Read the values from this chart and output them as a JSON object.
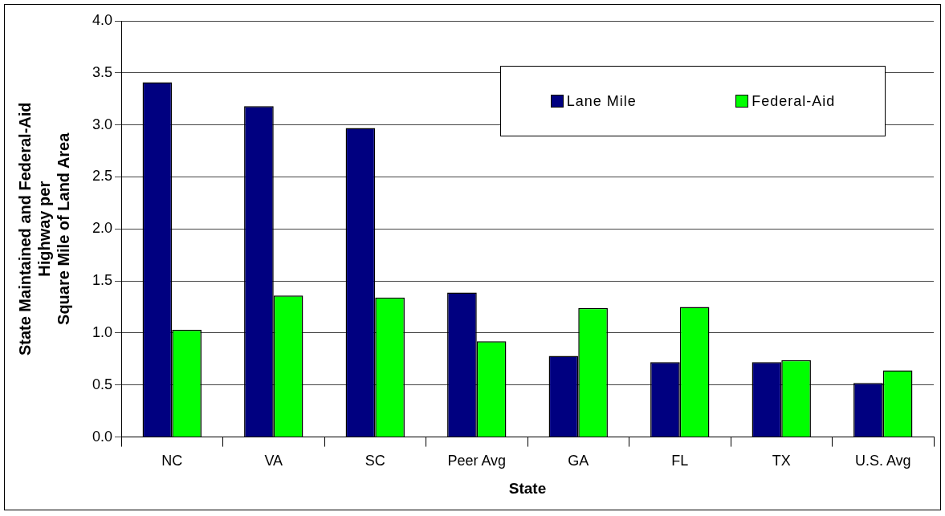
{
  "chart_data": {
    "type": "bar",
    "xlabel": "State",
    "ylabel": "State Maintained and Federal-Aid\nHighway per\nSquare Mile of Land Area",
    "categories": [
      "NC",
      "VA",
      "SC",
      "Peer Avg",
      "GA",
      "FL",
      "TX",
      "U.S. Avg"
    ],
    "series": [
      {
        "name": "Lane Mile",
        "color": "#000080",
        "values": [
          3.41,
          3.18,
          2.97,
          1.39,
          0.78,
          0.72,
          0.72,
          0.52
        ]
      },
      {
        "name": "Federal-Aid",
        "color": "#00ff00",
        "values": [
          1.03,
          1.36,
          1.34,
          0.92,
          1.24,
          1.25,
          0.74,
          0.64
        ]
      }
    ],
    "ylim": [
      0,
      4
    ],
    "yticks": [
      {
        "value": 0,
        "label": "0.0"
      },
      {
        "value": 0.5,
        "label": "0.5"
      },
      {
        "value": 1,
        "label": "1.0"
      },
      {
        "value": 1.5,
        "label": "1.5"
      },
      {
        "value": 2,
        "label": "2.0"
      },
      {
        "value": 2.5,
        "label": "2.5"
      },
      {
        "value": 3,
        "label": "3.0"
      },
      {
        "value": 3.5,
        "label": "3.5"
      },
      {
        "value": 4,
        "label": "4.0"
      }
    ],
    "grid": "y",
    "legend": "top right"
  }
}
